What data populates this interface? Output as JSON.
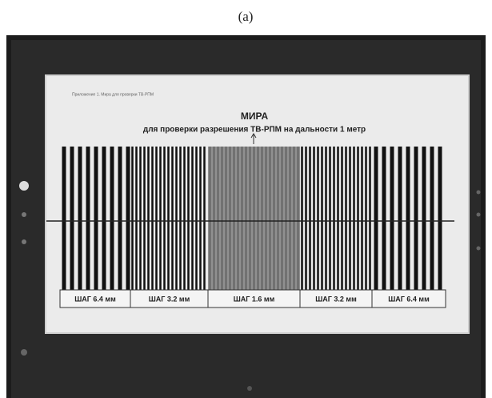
{
  "caption": "(a)",
  "screen": {
    "header_note": "Приложение 1. Мира для проверки ТВ-РПМ",
    "title": "МИРА",
    "subtitle": "для проверки разрешения ТВ-РПМ на дальности 1 метр",
    "group_labels": [
      "ШАГ 6.4 мм",
      "ШАГ 3.2 мм",
      "ШАГ 1.6 мм",
      "ШАГ 3.2 мм",
      "ШАГ 6.4 мм"
    ]
  }
}
